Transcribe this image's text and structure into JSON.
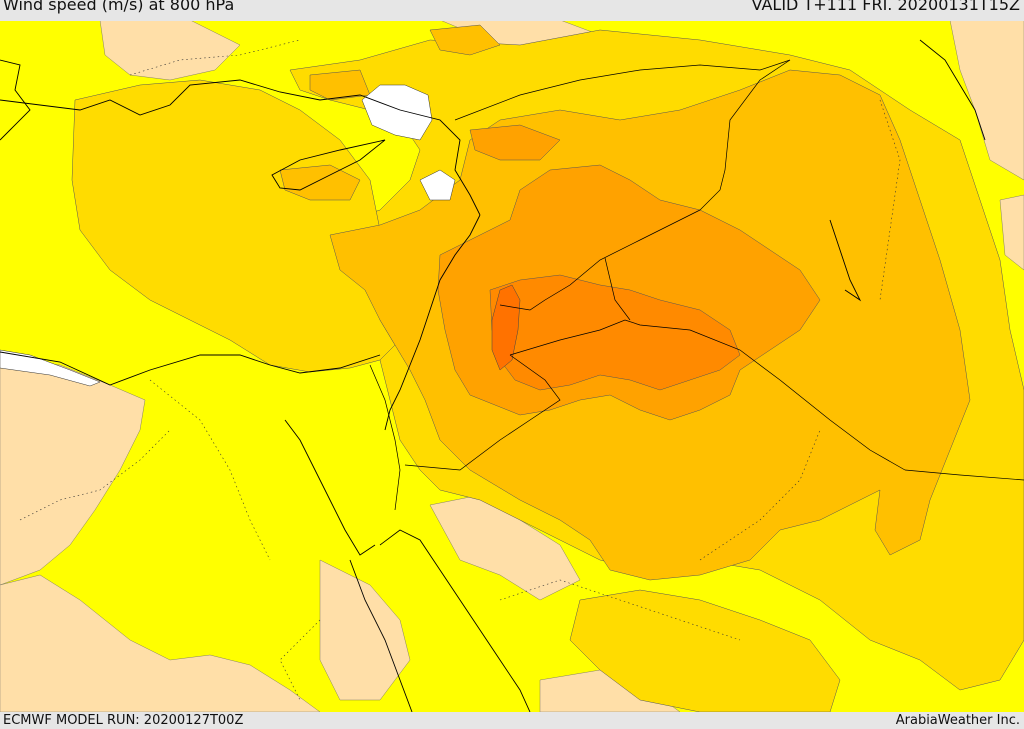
{
  "header": {
    "title": "Wind speed (m/s) at 800 hPa",
    "valid": "VALID T+111 FRI. 20200131T15Z"
  },
  "footer": {
    "model_run": "ECMWF MODEL RUN: 20200127T00Z",
    "credit": "ArabiaWeather Inc."
  },
  "colors": {
    "band_1": "#ffdfa8",
    "band_2": "#ffff00",
    "band_3": "#ffdc00",
    "band_4": "#ffc000",
    "band_5": "#ffa200",
    "band_6": "#ff8a00",
    "band_7": "#ff7200",
    "water_gap": "#ffffff",
    "coastline": "#000000"
  }
}
